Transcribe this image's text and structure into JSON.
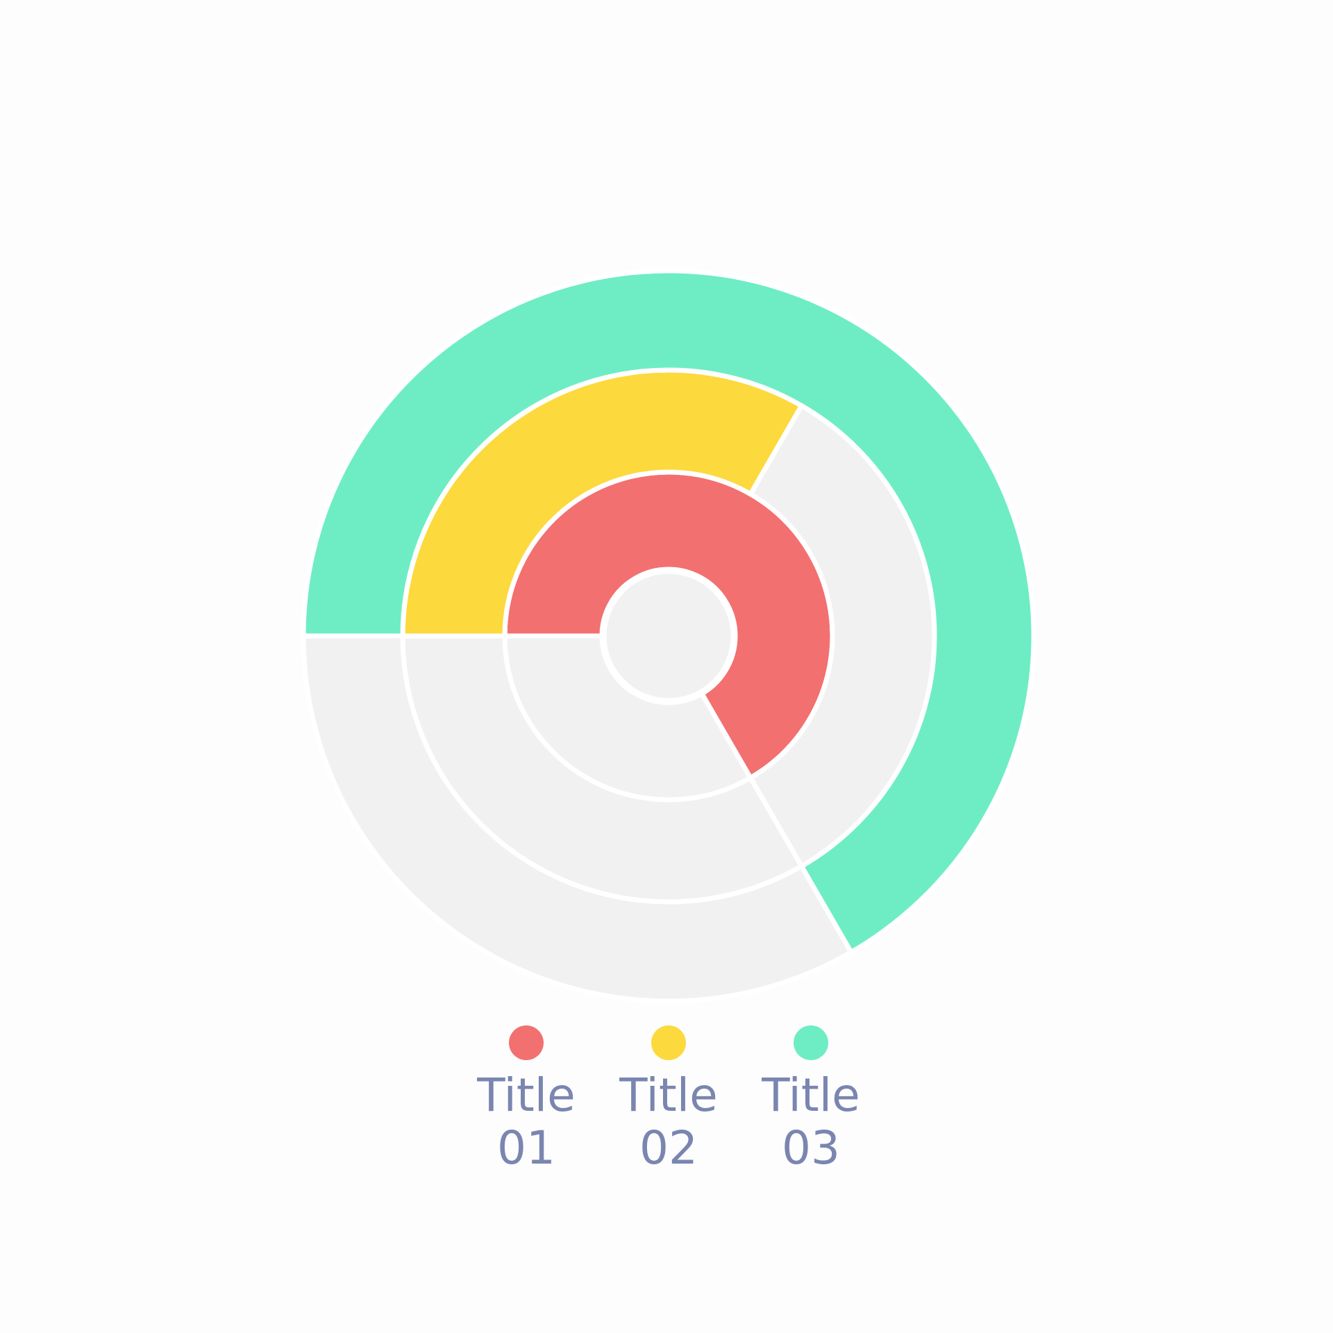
{
  "chart_data": {
    "type": "radial-bar",
    "segments": 3,
    "series": [
      {
        "name": "Title 01",
        "color": "#f37070",
        "value": 2
      },
      {
        "name": "Title 02",
        "color": "#fcd93d",
        "value": 1
      },
      {
        "name": "Title 03",
        "color": "#6eedc4",
        "value": 2
      }
    ]
  }
}
